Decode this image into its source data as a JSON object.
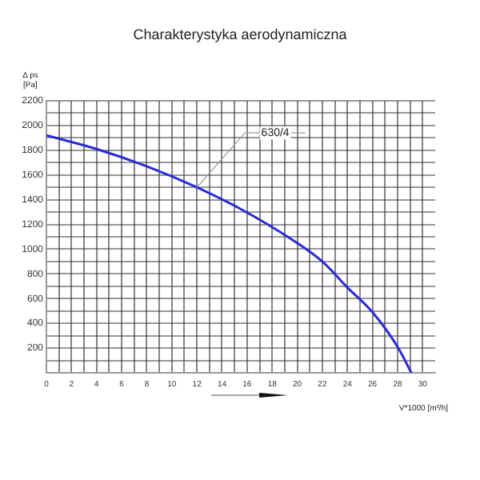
{
  "chart_data": {
    "type": "line",
    "title": "Charakterystyka aerodynamiczna",
    "xlabel": "V*1000 [m³/h]",
    "ylabel": "Δ ps [Pa]",
    "xlim": [
      0,
      31
    ],
    "xticks": [
      0,
      {
        "value": 1,
        "label": null
      },
      2,
      {
        "value": 3,
        "label": null
      },
      4,
      {
        "value": 5,
        "label": null
      },
      6,
      {
        "value": 7,
        "label": null
      },
      8,
      {
        "value": 9,
        "label": null
      },
      10,
      {
        "value": 11,
        "label": null
      },
      12,
      {
        "value": 13,
        "label": null
      },
      14,
      {
        "value": 15,
        "label": null
      },
      16,
      {
        "value": 17,
        "label": null
      },
      18,
      {
        "value": 19,
        "label": null
      },
      20,
      {
        "value": 21,
        "label": null
      },
      22,
      {
        "value": 23,
        "label": null
      },
      24,
      {
        "value": 25,
        "label": null
      },
      26,
      {
        "value": 27,
        "label": null
      },
      28,
      {
        "value": 29,
        "label": null
      },
      30
    ],
    "ylim": [
      0,
      2200
    ],
    "yticks": [
      {
        "value": 0,
        "label": null
      },
      {
        "value": 100,
        "label": null
      },
      200,
      {
        "value": 300,
        "label": null
      },
      400,
      {
        "value": 500,
        "label": null
      },
      600,
      {
        "value": 700,
        "label": null
      },
      800,
      {
        "value": 900,
        "label": null
      },
      1000,
      {
        "value": 1100,
        "label": null
      },
      1200,
      {
        "value": 1300,
        "label": null
      },
      1400,
      {
        "value": 1500,
        "label": null
      },
      1600,
      {
        "value": 1700,
        "label": null
      },
      1800,
      {
        "value": 1900,
        "label": null
      },
      2000,
      {
        "value": 2100,
        "label": null
      },
      2200
    ],
    "grid": true,
    "legend": false,
    "marker": "none",
    "line_style": "solid",
    "series": [
      {
        "name": "630/4",
        "color": "#2b2bd6",
        "x": [
          0,
          4,
          8,
          12,
          15.4,
          19.7,
          22,
          24,
          26,
          28,
          29.1
        ],
        "values": [
          1920,
          1810,
          1670,
          1500,
          1330,
          1070,
          900,
          690,
          490,
          210,
          0
        ]
      }
    ]
  }
}
